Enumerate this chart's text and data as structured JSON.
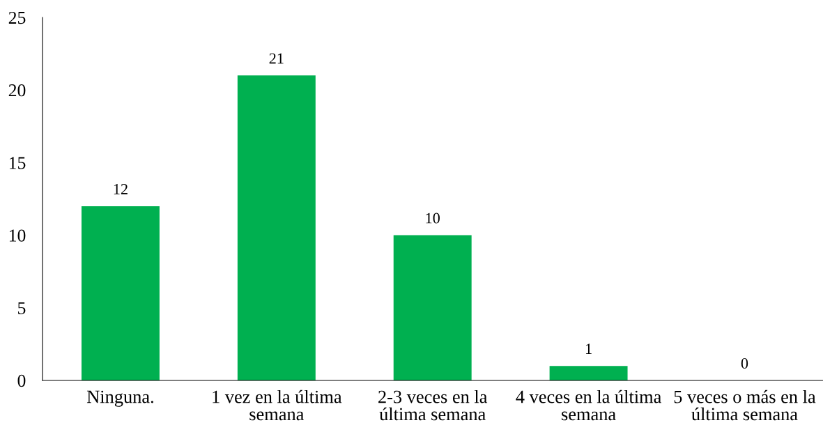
{
  "chart_data": {
    "type": "bar",
    "categories": [
      "Ninguna.",
      "1 vez en la última\nsemana",
      "2-3 veces en la\núltima semana",
      "4 veces en la última\nsemana",
      "5 veces o más en la\núltima semana"
    ],
    "values": [
      12,
      21,
      10,
      1,
      0
    ],
    "data_labels": true,
    "color": "#00b050",
    "ylim": [
      0,
      25
    ],
    "yticks": [
      0,
      5,
      10,
      15,
      20,
      25
    ],
    "grid": false,
    "legend": false
  }
}
